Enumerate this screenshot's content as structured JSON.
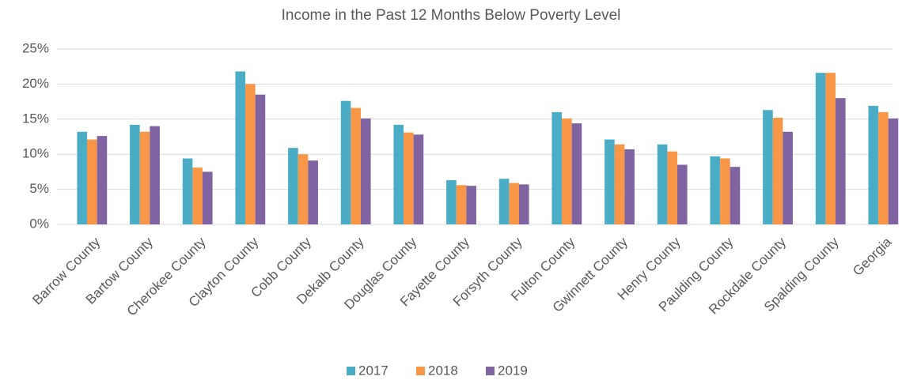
{
  "chart_data": {
    "type": "bar",
    "title": "Income in the Past 12 Months Below Poverty Level",
    "categories": [
      "Barrow County",
      "Bartow County",
      "Cherokee County",
      "Clayton County",
      "Cobb County",
      "Dekalb County",
      "Douglas County",
      "Fayette County",
      "Forsyth County",
      "Fulton County",
      "Gwinnett County",
      "Henry County",
      "Paulding County",
      "Rockdale County",
      "Spalding County",
      "Georgia"
    ],
    "series": [
      {
        "name": "2017",
        "color": "#4bacc6",
        "values": [
          13.2,
          14.2,
          9.4,
          21.8,
          10.9,
          17.6,
          14.2,
          6.3,
          6.5,
          16.0,
          12.1,
          11.4,
          9.7,
          16.3,
          21.6,
          16.9
        ]
      },
      {
        "name": "2018",
        "color": "#f79646",
        "values": [
          12.1,
          13.2,
          8.1,
          20.0,
          10.0,
          16.6,
          13.1,
          5.6,
          5.9,
          15.1,
          11.4,
          10.4,
          9.4,
          15.2,
          21.6,
          16.0
        ]
      },
      {
        "name": "2019",
        "color": "#8064a2",
        "values": [
          12.6,
          14.0,
          7.5,
          18.5,
          9.1,
          15.1,
          12.8,
          5.5,
          5.7,
          14.4,
          10.7,
          8.5,
          8.2,
          13.2,
          18.0,
          15.1
        ]
      }
    ],
    "ylim": [
      0,
      25
    ],
    "yticks": [
      {
        "value": 0,
        "label": "0%"
      },
      {
        "value": 5,
        "label": "5%"
      },
      {
        "value": 10,
        "label": "10%"
      },
      {
        "value": 15,
        "label": "15%"
      },
      {
        "value": 20,
        "label": "20%"
      },
      {
        "value": 25,
        "label": "25%"
      }
    ],
    "grid": true,
    "legend": "bottom"
  }
}
